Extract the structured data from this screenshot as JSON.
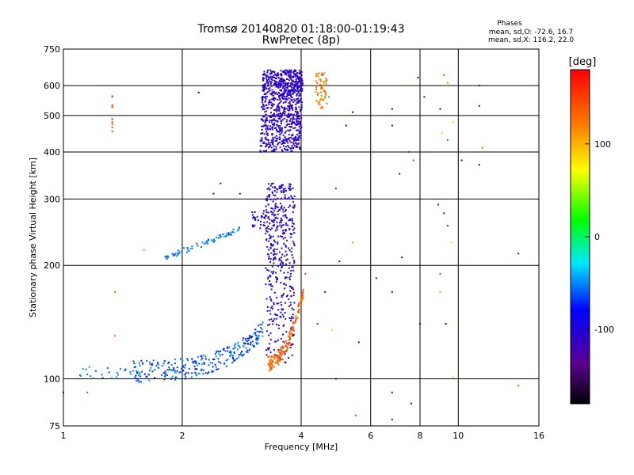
{
  "chart_data": {
    "type": "scatter",
    "title": "Tromsø 20140820 01:18:00-01:19:43",
    "subtitle": "RwPretec (8p)",
    "stats_header": "Phases",
    "stats_line1": "mean, sd,O: -72.6, 16.7",
    "stats_line2": "mean, sd,X: 116.2, 22.0",
    "xlabel": "Frequency [MHz]",
    "ylabel": "Stationary phase Virtual Height [km]",
    "xscale": "log",
    "yscale": "log",
    "xlim": [
      1,
      16
    ],
    "ylim": [
      75,
      750
    ],
    "xticks": [
      1,
      2,
      4,
      6,
      8,
      10,
      16
    ],
    "xtick_labels": [
      "1",
      "2",
      "4",
      "6",
      "8",
      "10",
      "16"
    ],
    "xgrid_lines": [
      2,
      4,
      6,
      8,
      10
    ],
    "yticks": [
      75,
      100,
      200,
      300,
      400,
      500,
      600,
      750
    ],
    "ytick_labels": [
      "75",
      "100",
      "200",
      "300",
      "400",
      "500",
      "600",
      "750"
    ],
    "ygrid_lines": [
      100,
      200,
      300,
      400,
      500,
      600
    ],
    "grid": true,
    "colorbar": {
      "label": "[deg]",
      "range": [
        -180,
        180
      ],
      "ticks": [
        100,
        0,
        -100
      ],
      "tick_labels": [
        "100",
        "0",
        "-100"
      ],
      "colors": [
        "#000000",
        "#5a0090",
        "#0000ff",
        "#00e8ff",
        "#00ff00",
        "#ffff00",
        "#ff8000",
        "#ff0000"
      ]
    },
    "series": [
      {
        "values_description": "O-mode F2 cusp dense trace",
        "points": [
          {
            "x": 3.15,
            "y": 400,
            "phase": -90
          },
          {
            "x": 3.3,
            "y": 420,
            "phase": -100
          },
          {
            "x": 3.6,
            "y": 450,
            "phase": -110
          },
          {
            "x": 3.9,
            "y": 500,
            "phase": -95
          },
          {
            "x": 3.2,
            "y": 550,
            "phase": -100
          },
          {
            "x": 3.5,
            "y": 600,
            "phase": -90
          },
          {
            "x": 3.8,
            "y": 640,
            "phase": -100
          },
          {
            "x": 3.3,
            "y": 660,
            "phase": -80
          }
        ]
      }
    ]
  }
}
